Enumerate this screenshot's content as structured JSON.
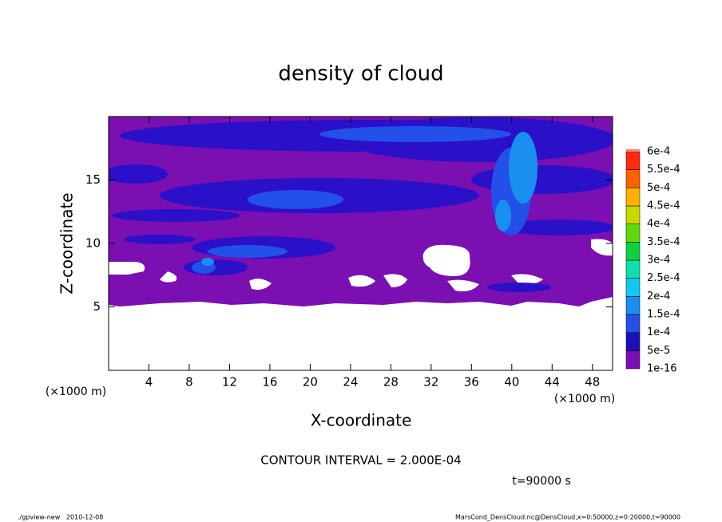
{
  "chart_data": {
    "type": "contour",
    "title": "density of cloud",
    "x_label": "X-coordinate",
    "y_label": "Z-coordinate",
    "x_unit": "(×1000 m)",
    "y_unit": "(×1000 m)",
    "xlim": [
      0,
      50
    ],
    "ylim": [
      0,
      20
    ],
    "xticks": [
      4,
      8,
      12,
      16,
      20,
      24,
      28,
      32,
      36,
      40,
      44,
      48
    ],
    "yticks": [
      5,
      10,
      15
    ],
    "levels": [
      {
        "value": 1e-16,
        "label": "1e-16"
      },
      {
        "value": 5e-05,
        "label": "5e-5"
      },
      {
        "value": 0.0001,
        "label": "1e-4"
      },
      {
        "value": 0.00015,
        "label": "1.5e-4"
      },
      {
        "value": 0.0002,
        "label": "2e-4"
      },
      {
        "value": 0.00025,
        "label": "2.5e-4"
      },
      {
        "value": 0.0003,
        "label": "3e-4"
      },
      {
        "value": 0.00035,
        "label": "3.5e-4"
      },
      {
        "value": 0.0004,
        "label": "4e-4"
      },
      {
        "value": 0.00045,
        "label": "4.5e-4"
      },
      {
        "value": 0.0005,
        "label": "5e-4"
      },
      {
        "value": 0.00055,
        "label": "5.5e-4"
      },
      {
        "value": 0.0006,
        "label": "6e-4"
      }
    ],
    "colors": [
      "#7a0fb2",
      "#1a10b8",
      "#2250e8",
      "#1890f0",
      "#10c8f0",
      "#10e0b0",
      "#10d040",
      "#60d810",
      "#c8d800",
      "#ffb000",
      "#ff6000",
      "#ff2a10",
      "#ff8080"
    ],
    "contour_interval": "CONTOUR INTERVAL = 2.000E-04",
    "time_label": "t=90000 s",
    "footer_left": "./gpview-new   2010-12-08",
    "footer_right": "MarsCond_DensCloud.nc@DensCloud,x=0:50000,z=0:20000,t=90000"
  }
}
